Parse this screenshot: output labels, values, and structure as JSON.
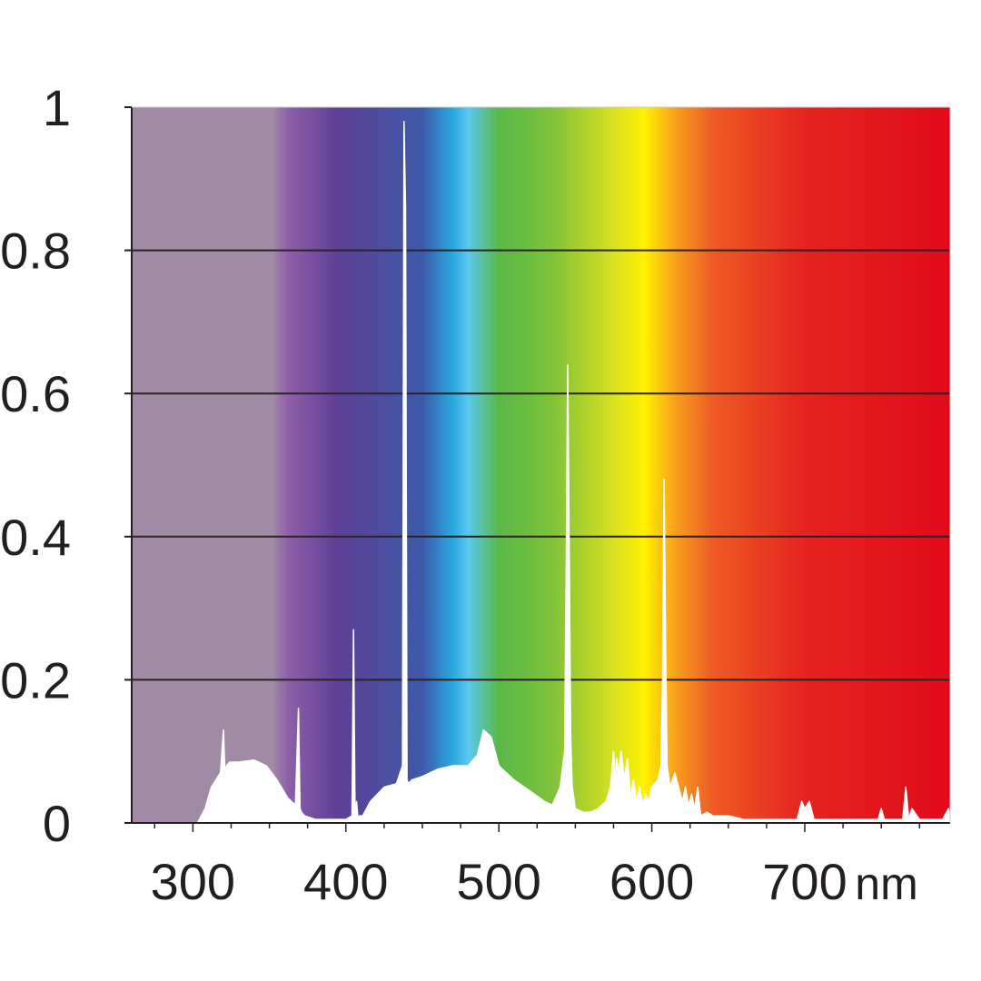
{
  "chart_data": {
    "type": "area",
    "title": "",
    "xlabel": "",
    "ylabel": "",
    "x_unit": "nm",
    "xlim": [
      260,
      795
    ],
    "ylim": [
      0,
      1
    ],
    "x_ticks": [
      300,
      400,
      500,
      600,
      700
    ],
    "x_tick_labels": [
      "300",
      "400",
      "500",
      "600",
      "700"
    ],
    "y_ticks": [
      0,
      0.2,
      0.4,
      0.6,
      0.8,
      1
    ],
    "y_tick_labels": [
      "0",
      "0.2",
      "0.4",
      "0.6",
      "0.8",
      "1"
    ],
    "grid": true,
    "legend": "none",
    "background_gradient": [
      {
        "nm": 260,
        "color": "#a18aa6"
      },
      {
        "nm": 352,
        "color": "#a18aa6"
      },
      {
        "nm": 362,
        "color": "#8e5fa8"
      },
      {
        "nm": 395,
        "color": "#5e3f96"
      },
      {
        "nm": 450,
        "color": "#3c5aa8"
      },
      {
        "nm": 470,
        "color": "#2aa9e0"
      },
      {
        "nm": 480,
        "color": "#5bc8ef"
      },
      {
        "nm": 500,
        "color": "#59b847"
      },
      {
        "nm": 535,
        "color": "#7fc23a"
      },
      {
        "nm": 575,
        "color": "#d9e020"
      },
      {
        "nm": 595,
        "color": "#fff200"
      },
      {
        "nm": 615,
        "color": "#f7a21b"
      },
      {
        "nm": 640,
        "color": "#ee5a25"
      },
      {
        "nm": 700,
        "color": "#e5231f"
      },
      {
        "nm": 795,
        "color": "#e10a1b"
      }
    ],
    "series": [
      {
        "color": "#ffffff",
        "x": [
          260,
          303,
          308,
          312,
          318,
          320,
          321,
          322,
          324,
          330,
          340,
          348,
          355,
          362,
          367,
          369,
          370,
          371,
          373,
          380,
          390,
          400,
          404,
          405,
          406,
          407,
          408,
          409,
          411,
          416,
          425,
          433,
          437,
          438,
          439,
          440,
          441,
          443,
          450,
          460,
          470,
          480,
          486,
          490,
          495,
          500,
          510,
          520,
          530,
          535,
          540,
          543,
          544,
          545,
          546,
          547,
          548,
          550,
          555,
          560,
          565,
          570,
          573,
          575,
          576,
          577,
          578,
          580,
          582,
          584,
          586,
          588,
          590,
          592,
          594,
          596,
          598,
          600,
          604,
          606,
          607,
          608,
          609,
          610,
          612,
          615,
          620,
          622,
          624,
          626,
          628,
          630,
          632,
          636,
          640,
          650,
          660,
          680,
          695,
          698,
          700,
          703,
          706,
          710,
          720,
          730,
          740,
          748,
          750,
          752,
          760,
          764,
          766,
          768,
          770,
          775,
          780,
          790,
          794,
          795
        ],
        "y": [
          0,
          0,
          0.02,
          0.05,
          0.07,
          0.13,
          0.07,
          0.08,
          0.085,
          0.085,
          0.088,
          0.08,
          0.06,
          0.035,
          0.025,
          0.16,
          0.02,
          0.015,
          0.01,
          0.005,
          0.005,
          0.005,
          0.01,
          0.27,
          0.01,
          0.03,
          0.005,
          0.01,
          0.01,
          0.03,
          0.05,
          0.055,
          0.08,
          0.98,
          0.86,
          0.06,
          0.055,
          0.06,
          0.065,
          0.075,
          0.08,
          0.08,
          0.095,
          0.13,
          0.12,
          0.08,
          0.06,
          0.045,
          0.03,
          0.025,
          0.05,
          0.1,
          0.35,
          0.64,
          0.38,
          0.12,
          0.05,
          0.02,
          0.015,
          0.015,
          0.02,
          0.03,
          0.05,
          0.1,
          0.06,
          0.09,
          0.07,
          0.1,
          0.06,
          0.09,
          0.04,
          0.06,
          0.03,
          0.05,
          0.025,
          0.04,
          0.03,
          0.05,
          0.06,
          0.08,
          0.2,
          0.48,
          0.25,
          0.08,
          0.05,
          0.07,
          0.03,
          0.05,
          0.025,
          0.04,
          0.02,
          0.05,
          0.01,
          0.015,
          0.01,
          0.01,
          0.005,
          0.005,
          0.005,
          0.03,
          0.02,
          0.03,
          0.005,
          0.005,
          0.005,
          0.005,
          0.005,
          0.005,
          0.02,
          0.005,
          0.005,
          0.005,
          0.05,
          0.005,
          0.02,
          0.005,
          0.005,
          0.005,
          0.02,
          0
        ]
      }
    ]
  }
}
